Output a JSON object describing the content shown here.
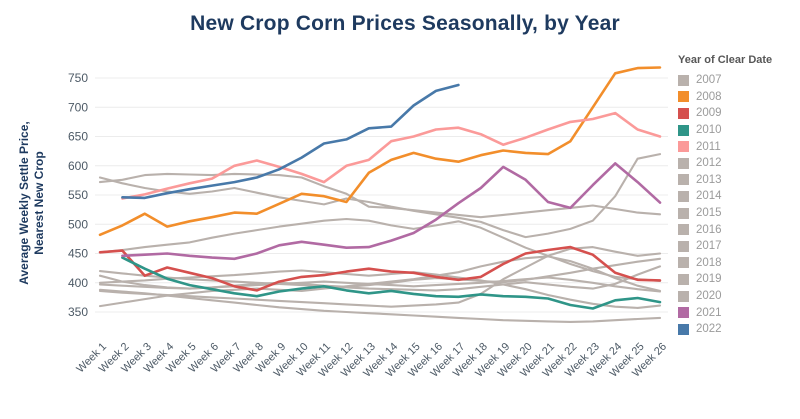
{
  "title": "New Crop Corn Prices Seasonally, by Year",
  "y_axis": {
    "title_line1": "Average Weekly Settle Price,",
    "title_line2": "Nearest New Crop",
    "ticks": [
      350,
      400,
      450,
      500,
      550,
      600,
      650,
      700,
      750
    ]
  },
  "legend": {
    "title": "Year of Clear Date"
  },
  "colors": {
    "title": "#1e3a5f",
    "axis_text": "#4d5a66",
    "gridline": "#ececec",
    "gray_series": "#b9b1ac"
  },
  "chart_data": {
    "type": "line",
    "title": "New Crop Corn Prices Seasonally, by Year",
    "xlabel": "",
    "ylabel": "Average Weekly Settle Price, Nearest New Crop",
    "ylim": [
      330,
      780
    ],
    "grid": "horizontal",
    "legend_position": "right",
    "x": [
      "Week 1",
      "Week 2",
      "Week 3",
      "Week 4",
      "Week 5",
      "Week 6",
      "Week 7",
      "Week 8",
      "Week 9",
      "Week 10",
      "Week 11",
      "Week 12",
      "Week 13",
      "Week 14",
      "Week 15",
      "Week 16",
      "Week 17",
      "Week 18",
      "Week 19",
      "Week 20",
      "Week 21",
      "Week 22",
      "Week 23",
      "Week 24",
      "Week 25",
      "Week 26"
    ],
    "series": [
      {
        "name": "2007",
        "color": "#b9b1ac",
        "emphasis": false,
        "values": [
          412,
          402,
          396,
          392,
          390,
          392,
          395,
          398,
          400,
          398,
          395,
          393,
          396,
          400,
          405,
          408,
          406,
          403,
          401,
          405,
          411,
          417,
          424,
          430,
          436,
          441
        ]
      },
      {
        "name": "2008",
        "color": "#f28e2b",
        "emphasis": true,
        "values": [
          482,
          498,
          518,
          496,
          505,
          512,
          520,
          518,
          535,
          552,
          548,
          538,
          588,
          610,
          622,
          612,
          607,
          618,
          626,
          622,
          620,
          642,
          700,
          758,
          767,
          768
        ]
      },
      {
        "name": "2009",
        "color": "#d5504e",
        "emphasis": true,
        "values": [
          452,
          455,
          412,
          426,
          417,
          408,
          394,
          387,
          402,
          410,
          413,
          419,
          424,
          419,
          417,
          410,
          405,
          410,
          432,
          450,
          456,
          461,
          448,
          417,
          405,
          404
        ]
      },
      {
        "name": "2010",
        "color": "#2f9588",
        "emphasis": true,
        "values": [
          null,
          443,
          424,
          407,
          396,
          389,
          382,
          377,
          385,
          390,
          394,
          387,
          382,
          386,
          381,
          377,
          376,
          380,
          377,
          376,
          373,
          362,
          356,
          370,
          374,
          367
        ]
      },
      {
        "name": "2011",
        "color": "#fb9a99",
        "emphasis": true,
        "values": [
          null,
          544,
          551,
          561,
          570,
          578,
          600,
          609,
          598,
          586,
          572,
          600,
          610,
          642,
          650,
          662,
          665,
          654,
          636,
          648,
          662,
          675,
          680,
          690,
          662,
          650
        ]
      },
      {
        "name": "2012",
        "color": "#b9b1ac",
        "emphasis": false,
        "values": [
          580,
          570,
          562,
          556,
          552,
          556,
          562,
          554,
          546,
          540,
          534,
          544,
          538,
          530,
          523,
          517,
          511,
          504,
          490,
          478,
          484,
          492,
          506,
          548,
          612,
          620
        ]
      },
      {
        "name": "2013",
        "color": "#b9b1ac",
        "emphasis": false,
        "values": [
          572,
          576,
          584,
          586,
          585,
          584,
          586,
          585,
          584,
          580,
          565,
          552,
          530,
          528,
          524,
          520,
          516,
          512,
          516,
          520,
          524,
          528,
          532,
          526,
          520,
          517
        ]
      },
      {
        "name": "2014",
        "color": "#b9b1ac",
        "emphasis": false,
        "values": [
          452,
          456,
          461,
          465,
          469,
          477,
          484,
          490,
          496,
          501,
          506,
          509,
          506,
          498,
          492,
          498,
          505,
          494,
          477,
          460,
          446,
          432,
          420,
          410,
          406,
          403
        ]
      },
      {
        "name": "2015",
        "color": "#b9b1ac",
        "emphasis": false,
        "values": [
          420,
          416,
          412,
          409,
          406,
          404,
          402,
          400,
          398,
          396,
          394,
          392,
          390,
          389,
          388,
          387,
          389,
          393,
          397,
          401,
          397,
          393,
          390,
          398,
          414,
          428
        ]
      },
      {
        "name": "2016",
        "color": "#b9b1ac",
        "emphasis": false,
        "values": [
          360,
          366,
          372,
          378,
          382,
          386,
          388,
          390,
          388,
          386,
          390,
          394,
          398,
          402,
          406,
          412,
          418,
          428,
          436,
          442,
          445,
          437,
          424,
          408,
          395,
          386
        ]
      },
      {
        "name": "2017",
        "color": "#b9b1ac",
        "emphasis": false,
        "values": [
          397,
          395,
          393,
          391,
          390,
          392,
          394,
          396,
          398,
          400,
          402,
          400,
          398,
          396,
          394,
          396,
          398,
          400,
          403,
          406,
          409,
          405,
          400,
          394,
          389,
          385
        ]
      },
      {
        "name": "2018",
        "color": "#b9b1ac",
        "emphasis": false,
        "values": [
          400,
          402,
          404,
          407,
          409,
          411,
          413,
          416,
          419,
          421,
          418,
          415,
          412,
          415,
          418,
          414,
          409,
          404,
          397,
          389,
          379,
          371,
          364,
          359,
          357,
          361
        ]
      },
      {
        "name": "2019",
        "color": "#b9b1ac",
        "emphasis": false,
        "values": [
          386,
          383,
          381,
          379,
          377,
          375,
          373,
          371,
          369,
          367,
          365,
          363,
          361,
          359,
          361,
          363,
          366,
          381,
          406,
          426,
          446,
          458,
          461,
          453,
          446,
          450
        ]
      },
      {
        "name": "2020",
        "color": "#b9b1ac",
        "emphasis": false,
        "values": [
          388,
          385,
          382,
          378,
          374,
          370,
          366,
          362,
          358,
          355,
          352,
          350,
          348,
          346,
          344,
          342,
          340,
          338,
          336,
          335,
          334,
          333,
          334,
          336,
          338,
          340
        ]
      },
      {
        "name": "2021",
        "color": "#b16aa3",
        "emphasis": true,
        "values": [
          null,
          446,
          448,
          450,
          446,
          443,
          441,
          450,
          464,
          470,
          465,
          460,
          461,
          472,
          485,
          508,
          536,
          562,
          598,
          576,
          538,
          528,
          567,
          604,
          572,
          537
        ]
      },
      {
        "name": "2022",
        "color": "#4879a9",
        "emphasis": true,
        "values": [
          null,
          546,
          545,
          553,
          560,
          566,
          572,
          580,
          594,
          614,
          638,
          645,
          664,
          667,
          703,
          728,
          738,
          null,
          null,
          null,
          null,
          null,
          null,
          null,
          null,
          null
        ]
      }
    ]
  }
}
